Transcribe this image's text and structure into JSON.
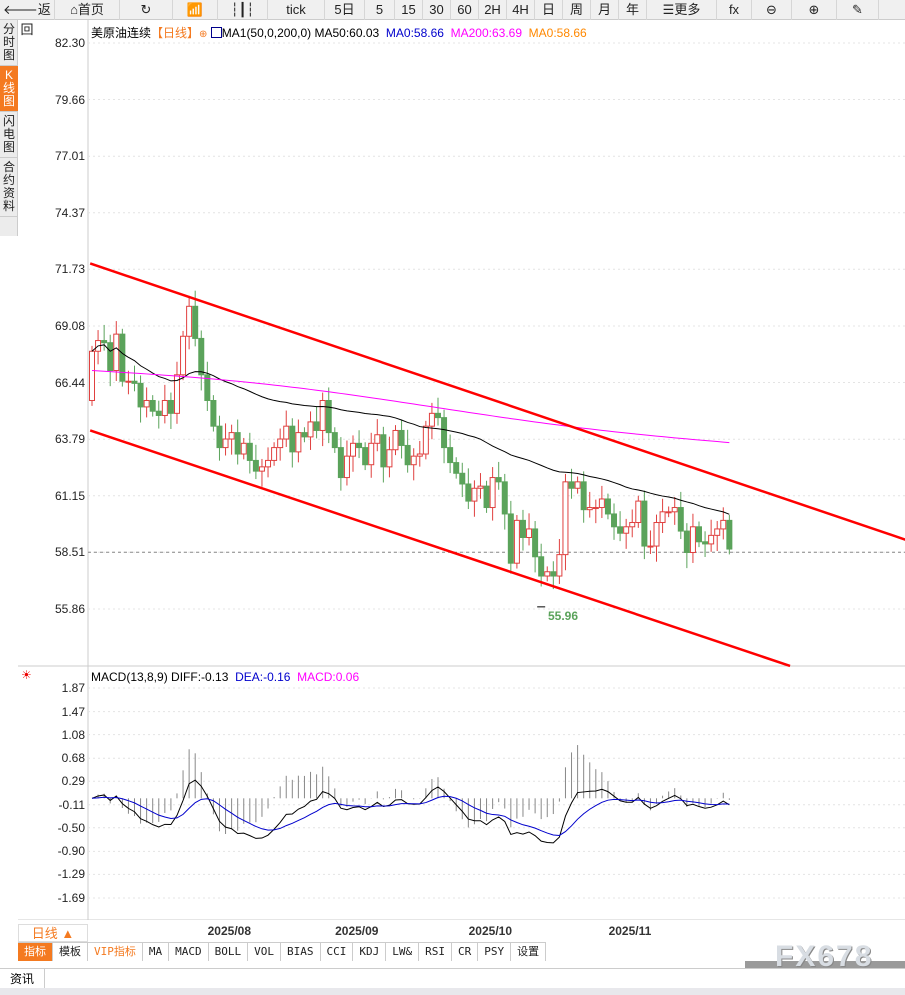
{
  "toolbar": {
    "items": [
      {
        "label": "返回",
        "icon": "back-arrow-icon"
      },
      {
        "label": "首页",
        "icon": "home-icon"
      },
      {
        "label": "",
        "icon": "refresh-icon"
      },
      {
        "label": "",
        "icon": "bar-chart-icon"
      },
      {
        "label": "",
        "icon": "candlestick-icon"
      },
      {
        "label": "tick"
      },
      {
        "label": "5日"
      },
      {
        "label": "5"
      },
      {
        "label": "15"
      },
      {
        "label": "30"
      },
      {
        "label": "60"
      },
      {
        "label": "2H"
      },
      {
        "label": "4H"
      },
      {
        "label": "日"
      },
      {
        "label": "周"
      },
      {
        "label": "月"
      },
      {
        "label": "年"
      },
      {
        "label": "更多",
        "icon": "menu-icon"
      },
      {
        "label": "",
        "icon": "fx-icon"
      },
      {
        "label": "",
        "icon": "zoom-out-icon"
      },
      {
        "label": "",
        "icon": "zoom-in-icon"
      },
      {
        "label": "",
        "icon": "pen-icon"
      }
    ]
  },
  "sidebar": {
    "items": [
      {
        "label": "分时图"
      },
      {
        "label": "K线图",
        "active": true
      },
      {
        "label": "闪电图"
      },
      {
        "label": "合约资料"
      }
    ]
  },
  "legend": {
    "symbol": "美原油连续",
    "period": "【日线】",
    "ma_name": "MA1(50,0,200,0)",
    "ma50": "MA50:60.03",
    "ma0a": "MA0:58.66",
    "ma200": "MA200:63.69",
    "ma0b": "MA0:58.66"
  },
  "macd_legend": {
    "name": "MACD(13,8,9)",
    "diff": "DIFF:-0.13",
    "dea": "DEA:-0.16",
    "macd": "MACD:0.06"
  },
  "low_label": "55.96",
  "period_button": "日线 ▲",
  "indicator_tabs": [
    "指标",
    "模板",
    "VIP指标",
    "MA",
    "MACD",
    "BOLL",
    "VOL",
    "BIAS",
    "CCI",
    "KDJ",
    "LW&",
    "RSI",
    "CR",
    "PSY",
    "设置"
  ],
  "watermark": "FX678",
  "news_tab": "资讯",
  "colors": {
    "up": "#e0403f",
    "down": "#5ba35b",
    "ma50": "#000000",
    "ma200": "#ff00ff",
    "channel": "#ff0000",
    "diff": "#000000",
    "dea": "#0000cc",
    "accent": "#f47a20"
  },
  "chart_data": [
    {
      "type": "candlestick",
      "title": "美原油连续",
      "price_ticks": [
        "82.30",
        "79.66",
        "77.01",
        "74.37",
        "71.73",
        "69.08",
        "66.44",
        "63.79",
        "61.15",
        "58.51",
        "55.86"
      ],
      "ylim": [
        55.86,
        82.3
      ],
      "x_tick_labels": [
        "2025/08",
        "2025/09",
        "2025/10",
        "2025/11"
      ],
      "x_tick_index": [
        19,
        40,
        62,
        85
      ],
      "close": [
        67.9,
        68.4,
        68.3,
        67.0,
        68.7,
        66.5,
        66.5,
        66.4,
        65.3,
        65.6,
        65.1,
        64.9,
        65.6,
        65.0,
        66.8,
        68.6,
        70.0,
        68.5,
        66.8,
        65.6,
        64.4,
        63.4,
        63.8,
        64.1,
        63.1,
        63.6,
        62.8,
        62.3,
        62.5,
        62.8,
        63.4,
        63.8,
        64.4,
        63.2,
        64.1,
        63.9,
        64.6,
        64.2,
        65.6,
        64.1,
        63.4,
        62.0,
        63.0,
        63.6,
        63.4,
        62.6,
        63.6,
        64.0,
        62.5,
        63.3,
        64.2,
        63.5,
        62.6,
        63.0,
        63.1,
        64.4,
        65.0,
        64.8,
        63.4,
        62.7,
        62.2,
        61.7,
        60.9,
        61.5,
        61.6,
        60.6,
        62.0,
        61.8,
        60.3,
        58.0,
        60.0,
        59.2,
        59.6,
        58.3,
        57.4,
        57.6,
        57.4,
        58.4,
        61.8,
        61.5,
        61.8,
        60.5,
        60.6,
        60.6,
        61.0,
        60.3,
        59.7,
        59.4,
        59.7,
        59.9,
        60.9,
        58.8,
        58.8,
        59.9,
        60.4,
        60.4,
        60.6,
        59.5,
        58.5,
        59.7,
        59.0,
        58.9,
        59.3,
        59.6,
        60.0,
        58.66
      ],
      "first_open": 65.6,
      "ma200_start": 67.0,
      "ma200_end": 63.69,
      "last_price": 58.51,
      "low_point": 55.96,
      "channel_upper": [
        [
          -0.3,
          72.0
        ],
        [
          134,
          59.1
        ]
      ],
      "channel_lower": [
        [
          -0.3,
          64.2
        ],
        [
          115,
          53.2
        ]
      ]
    },
    {
      "type": "macd",
      "ticks": [
        "1.87",
        "1.47",
        "1.08",
        "0.68",
        "0.29",
        "-0.11",
        "-0.50",
        "-0.90",
        "-1.29",
        "-1.69"
      ],
      "ylim": [
        -1.69,
        1.87
      ]
    }
  ]
}
